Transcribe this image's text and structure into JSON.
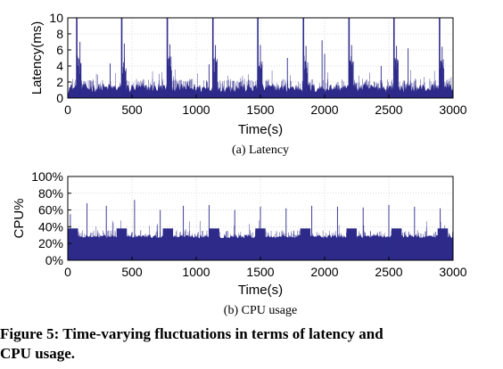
{
  "figure": {
    "caption_line1": "Figure 5: Time-varying fluctuations in terms of latency and",
    "caption_line2": "CPU usage."
  },
  "series_color": "#2d2a8a",
  "chart_data": [
    {
      "type": "line",
      "subcaption": "(a)  Latency",
      "xlabel": "Time(s)",
      "ylabel": "Latency(ms)",
      "xlim": [
        0,
        3000
      ],
      "ylim": [
        0,
        10
      ],
      "xticks": [
        0,
        500,
        1000,
        1500,
        2000,
        2500,
        3000
      ],
      "xtick_labels": [
        "0",
        "500",
        "1000",
        "1500",
        "2000",
        "2500",
        "3000"
      ],
      "yticks": [
        0,
        2,
        4,
        6,
        8,
        10
      ],
      "ytick_labels": [
        "0",
        "2",
        "4",
        "6",
        "8",
        "10"
      ],
      "grid": true,
      "baseline_band": [
        0.6,
        1.8
      ],
      "periodic_spikes_x": [
        70,
        420,
        775,
        1130,
        1480,
        1835,
        2190,
        2540,
        2895
      ],
      "periodic_spike_y": 10,
      "secondary_peaks": [
        [
          95,
          7.0
        ],
        [
          440,
          6.8
        ],
        [
          795,
          6.7
        ],
        [
          1150,
          6.6
        ],
        [
          1500,
          6.6
        ],
        [
          1855,
          6.5
        ],
        [
          1980,
          7.2
        ],
        [
          2210,
          6.6
        ],
        [
          2560,
          6.5
        ],
        [
          2915,
          6.4
        ],
        [
          2650,
          6.2
        ],
        [
          2000,
          5.5
        ],
        [
          1710,
          5.0
        ],
        [
          1100,
          4.2
        ],
        [
          330,
          4.3
        ],
        [
          2440,
          4.0
        ]
      ]
    },
    {
      "type": "line",
      "subcaption": "(b)  CPU usage",
      "xlabel": "Time(s)",
      "ylabel": "CPU%",
      "xlim": [
        0,
        3000
      ],
      "ylim": [
        0,
        100
      ],
      "xticks": [
        0,
        500,
        1000,
        1500,
        2000,
        2500,
        3000
      ],
      "xtick_labels": [
        "0",
        "500",
        "1000",
        "1500",
        "2000",
        "2500",
        "3000"
      ],
      "yticks": [
        0,
        20,
        40,
        60,
        80,
        100
      ],
      "ytick_labels": [
        "0%",
        "20%",
        "40%",
        "60%",
        "80%",
        "100%"
      ],
      "grid": true,
      "baseline_band": [
        26,
        30
      ],
      "bumps_x": [
        0,
        380,
        740,
        1100,
        1460,
        1810,
        2170,
        2520,
        2880
      ],
      "bump_y": 38,
      "secondary_peaks": [
        [
          20,
          55
        ],
        [
          150,
          68
        ],
        [
          300,
          65
        ],
        [
          520,
          72
        ],
        [
          720,
          60
        ],
        [
          900,
          65
        ],
        [
          1100,
          66
        ],
        [
          1300,
          60
        ],
        [
          1500,
          64
        ],
        [
          1700,
          62
        ],
        [
          1900,
          65
        ],
        [
          2100,
          64
        ],
        [
          2300,
          63
        ],
        [
          2500,
          66
        ],
        [
          2700,
          64
        ],
        [
          2900,
          62
        ]
      ]
    }
  ]
}
